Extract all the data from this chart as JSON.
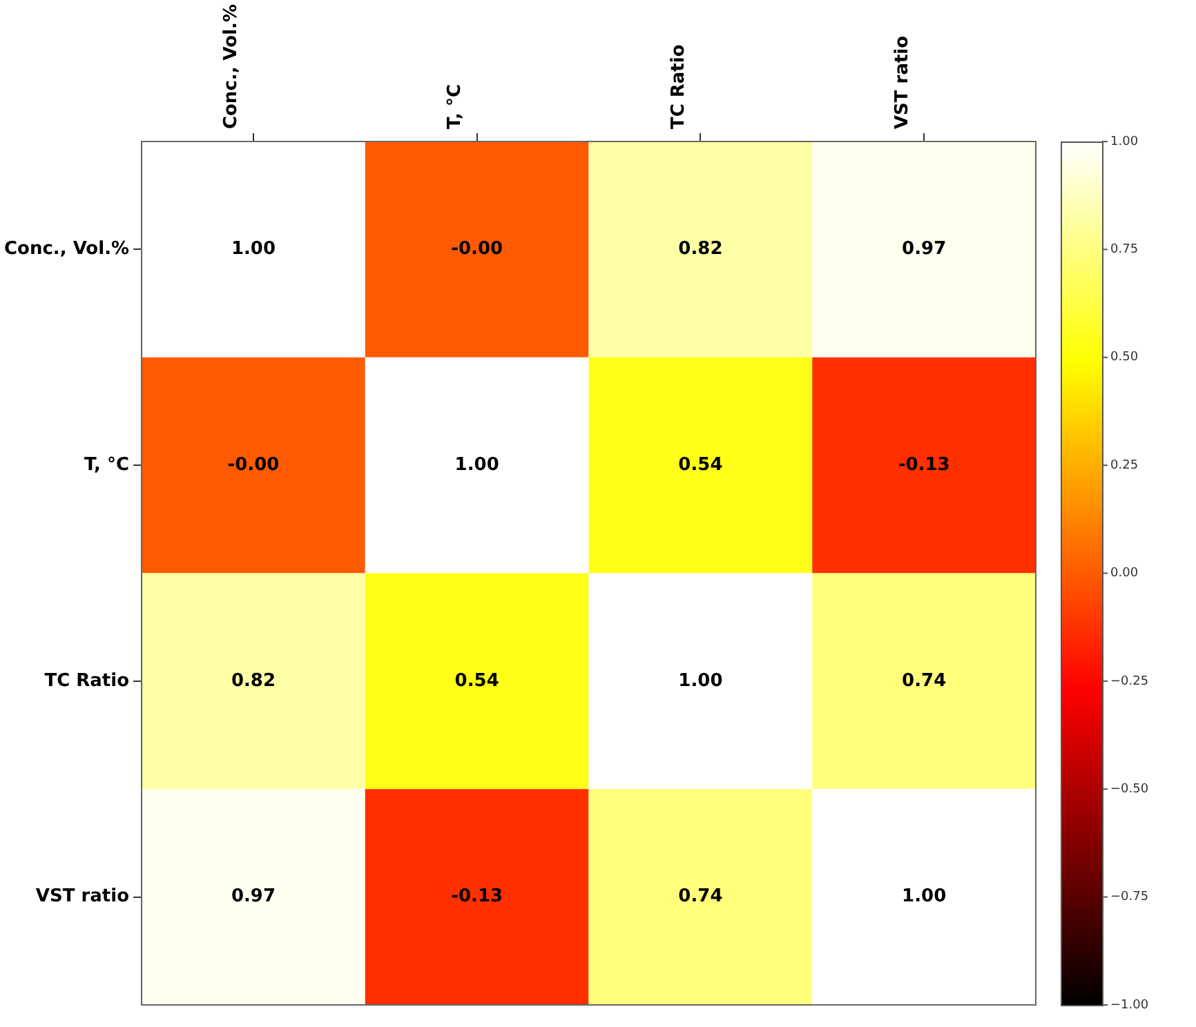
{
  "chart_data": {
    "type": "heatmap",
    "categories": [
      "Conc., Vol.%",
      "T, °C",
      "TC Ratio",
      "VST ratio"
    ],
    "y_categories": [
      "Conc., Vol.%",
      "T, °C",
      "TC Ratio",
      "VST ratio"
    ],
    "cells": [
      [
        1.0,
        0,
        0.82,
        0.97
      ],
      [
        0,
        1.0,
        0.54,
        -0.13
      ],
      [
        0.82,
        0.54,
        1.0,
        0.74
      ],
      [
        0.97,
        -0.13,
        0.74,
        1.0
      ]
    ],
    "cell_labels": [
      [
        "1.00",
        "-0.00",
        "0.82",
        "0.97"
      ],
      [
        "-0.00",
        "1.00",
        "0.54",
        "-0.13"
      ],
      [
        "0.82",
        "0.54",
        "1.00",
        "0.74"
      ],
      [
        "0.97",
        "-0.13",
        "0.74",
        "1.00"
      ]
    ],
    "clim": [
      -1,
      1
    ],
    "cticks": [
      {
        "value": -1,
        "label": "−1.00"
      },
      {
        "value": -0.75,
        "label": "−0.75"
      },
      {
        "value": -0.5,
        "label": "−0.50"
      },
      {
        "value": -0.25,
        "label": "−0.25"
      },
      {
        "value": 0,
        "label": "0.00"
      },
      {
        "value": 0.25,
        "label": "0.25"
      },
      {
        "value": 0.5,
        "label": "0.50"
      },
      {
        "value": 0.75,
        "label": "0.75"
      },
      {
        "value": 1,
        "label": "1.00"
      }
    ]
  }
}
